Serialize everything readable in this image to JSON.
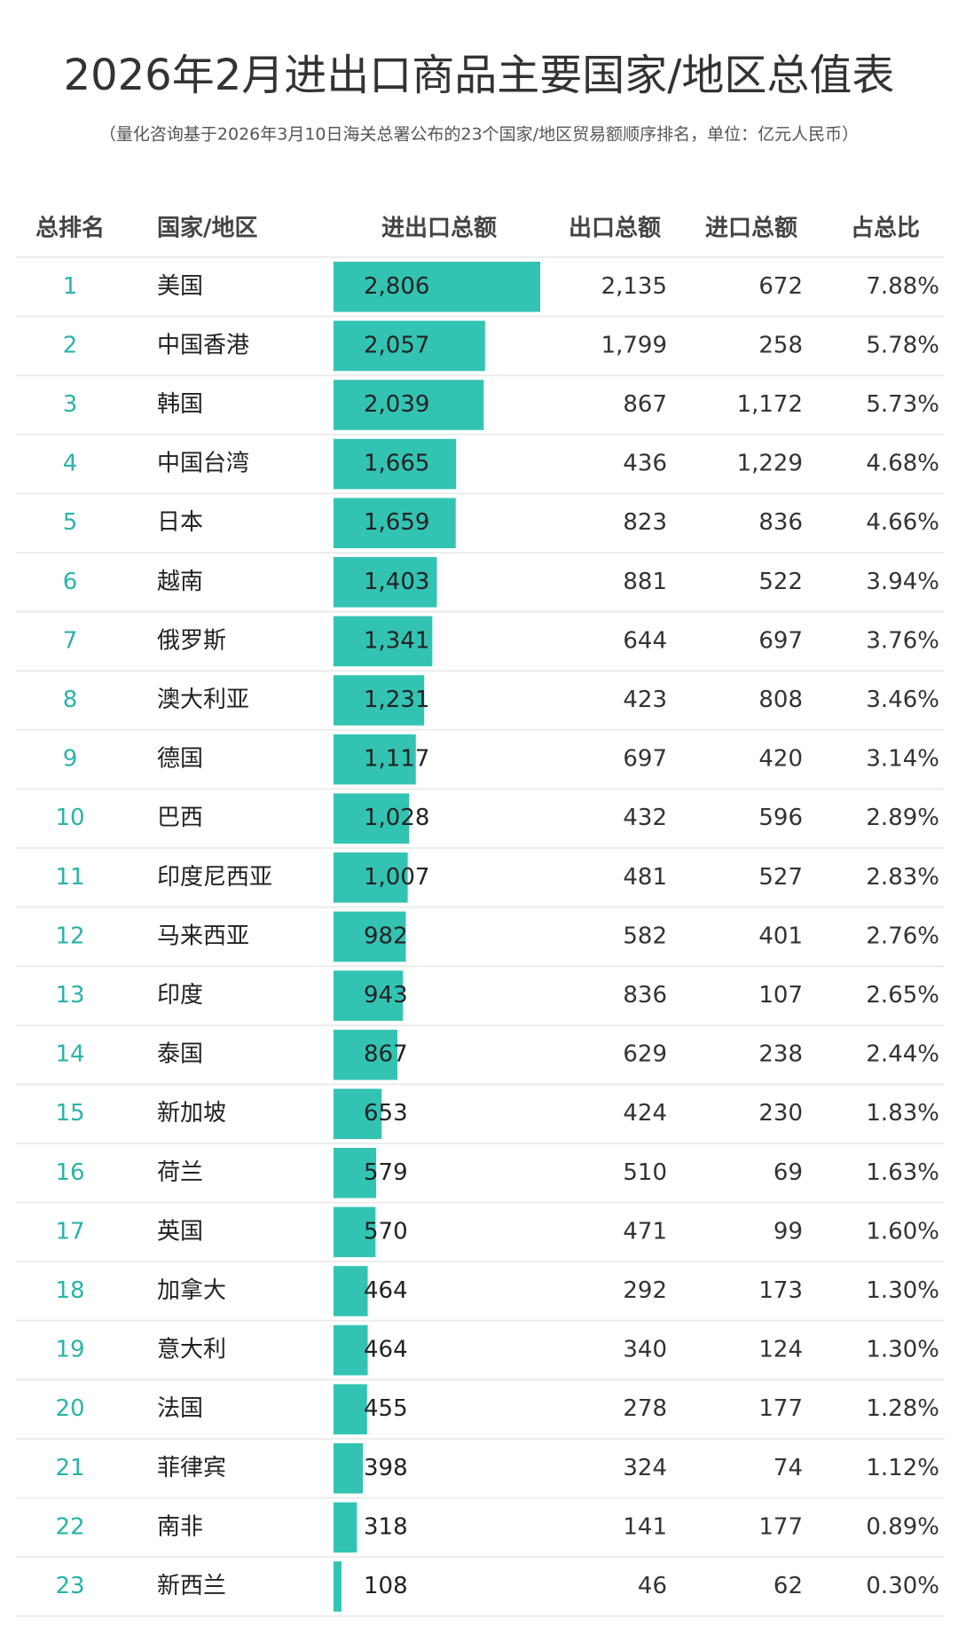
{
  "header": {
    "title": "2026年2月进出口商品主要国家/地区总值表",
    "subtitle": "（量化咨询基于2026年3月10日海关总署公布的23个国家/地区贸易额顺序排名，单位：亿元人民币）"
  },
  "table": {
    "columns": [
      "总排名",
      "国家/地区",
      "进出口总额",
      "出口总额",
      "进口总额",
      "占总比"
    ],
    "rows": [
      [
        "1",
        "美国",
        "2,806",
        "2,135",
        "672",
        "7.88%"
      ],
      [
        "2",
        "中国香港",
        "2,057",
        "1,799",
        "258",
        "5.78%"
      ],
      [
        "3",
        "韩国",
        "2,039",
        "867",
        "1,172",
        "5.73%"
      ],
      [
        "4",
        "中国台湾",
        "1,665",
        "436",
        "1,229",
        "4.68%"
      ],
      [
        "5",
        "日本",
        "1,659",
        "823",
        "836",
        "4.66%"
      ],
      [
        "6",
        "越南",
        "1,403",
        "881",
        "522",
        "3.94%"
      ],
      [
        "7",
        "俄罗斯",
        "1,341",
        "644",
        "697",
        "3.76%"
      ],
      [
        "8",
        "澳大利亚",
        "1,231",
        "423",
        "808",
        "3.46%"
      ],
      [
        "9",
        "德国",
        "1,117",
        "697",
        "420",
        "3.14%"
      ],
      [
        "10",
        "巴西",
        "1,028",
        "432",
        "596",
        "2.89%"
      ],
      [
        "11",
        "印度尼西亚",
        "1,007",
        "481",
        "527",
        "2.83%"
      ],
      [
        "12",
        "马来西亚",
        "982",
        "582",
        "401",
        "2.76%"
      ],
      [
        "13",
        "印度",
        "943",
        "836",
        "107",
        "2.65%"
      ],
      [
        "14",
        "泰国",
        "867",
        "629",
        "238",
        "2.44%"
      ],
      [
        "15",
        "新加坡",
        "653",
        "424",
        "230",
        "1.83%"
      ],
      [
        "16",
        "荷兰",
        "579",
        "510",
        "69",
        "1.63%"
      ],
      [
        "17",
        "英国",
        "570",
        "471",
        "99",
        "1.60%"
      ],
      [
        "18",
        "加拿大",
        "464",
        "292",
        "173",
        "1.30%"
      ],
      [
        "19",
        "意大利",
        "464",
        "340",
        "124",
        "1.30%"
      ],
      [
        "20",
        "法国",
        "455",
        "278",
        "177",
        "1.28%"
      ],
      [
        "21",
        "菲律宾",
        "398",
        "324",
        "74",
        "1.12%"
      ],
      [
        "22",
        "南非",
        "318",
        "141",
        "177",
        "0.89%"
      ],
      [
        "23",
        "新西兰",
        "108",
        "46",
        "62",
        "0.30%"
      ]
    ]
  }
}
